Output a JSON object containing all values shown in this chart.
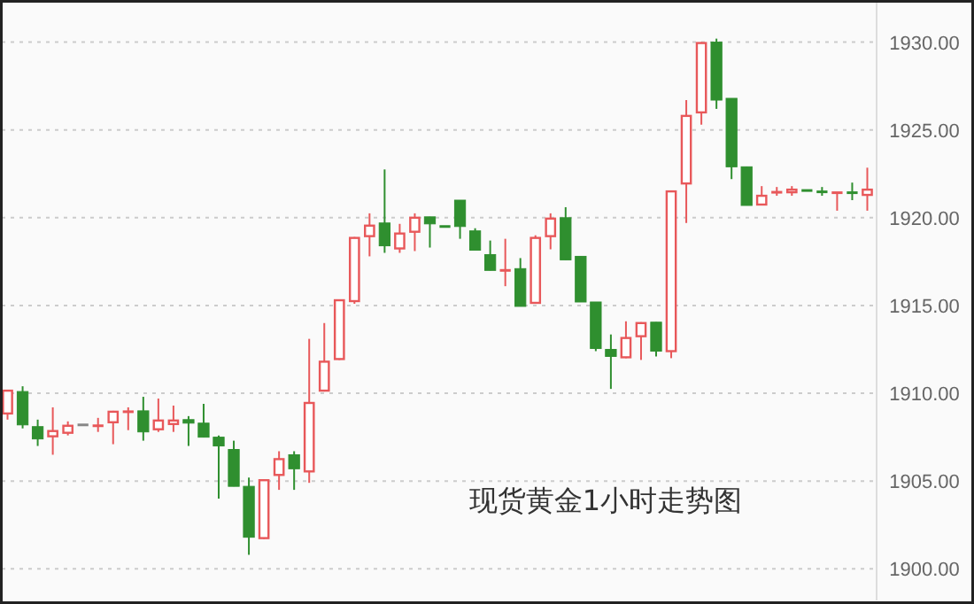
{
  "chart_data": {
    "type": "candlestick",
    "title": "现货黄金1小时走势图",
    "categories": [
      null,
      null,
      null,
      null,
      null,
      null,
      null,
      null,
      null,
      null,
      null,
      null,
      null,
      null,
      null,
      null,
      null,
      null,
      null,
      null,
      null,
      null,
      null,
      null,
      null,
      null,
      null,
      null,
      null,
      null,
      null,
      null,
      null,
      null,
      null,
      null,
      null,
      null,
      null,
      null,
      null,
      null,
      null,
      null,
      null,
      null,
      null,
      null,
      null,
      null,
      null,
      null,
      null,
      null,
      null,
      null,
      null,
      null
    ],
    "ohlc": [
      [
        1908.8,
        1910.2,
        1908.5,
        1910.2
      ],
      [
        1910.1,
        1910.4,
        1908.0,
        1908.2
      ],
      [
        1908.1,
        1908.5,
        1907.0,
        1907.4
      ],
      [
        1907.5,
        1909.2,
        1906.5,
        1907.9
      ],
      [
        1907.7,
        1908.4,
        1907.6,
        1908.2
      ],
      [
        1908.2,
        1908.2,
        1908.2,
        1908.2
      ],
      [
        1908.1,
        1908.6,
        1907.8,
        1908.2
      ],
      [
        1908.3,
        1909.0,
        1907.1,
        1909.0
      ],
      [
        1908.9,
        1909.2,
        1907.9,
        1909.0
      ],
      [
        1909.0,
        1909.8,
        1907.3,
        1907.8
      ],
      [
        1907.9,
        1909.7,
        1907.8,
        1908.5
      ],
      [
        1908.2,
        1909.3,
        1907.8,
        1908.5
      ],
      [
        1908.5,
        1908.7,
        1907.0,
        1908.3
      ],
      [
        1908.3,
        1909.4,
        1907.5,
        1907.5
      ],
      [
        1907.5,
        1907.6,
        1904.0,
        1907.0
      ],
      [
        1906.8,
        1907.3,
        1904.7,
        1904.7
      ],
      [
        1904.7,
        1905.2,
        1900.8,
        1901.8
      ],
      [
        1901.7,
        1905.1,
        1901.7,
        1905.1
      ],
      [
        1905.3,
        1906.7,
        1904.5,
        1906.3
      ],
      [
        1906.5,
        1906.7,
        1904.5,
        1905.7
      ],
      [
        1905.5,
        1913.1,
        1904.9,
        1909.5
      ],
      [
        1910.1,
        1914.0,
        1910.1,
        1911.85
      ],
      [
        1911.9,
        1915.35,
        1911.9,
        1915.35
      ],
      [
        1915.2,
        1918.9,
        1915.1,
        1918.9
      ],
      [
        1918.9,
        1920.25,
        1917.8,
        1919.6
      ],
      [
        1919.7,
        1922.75,
        1918.0,
        1918.4
      ],
      [
        1918.2,
        1919.65,
        1918.0,
        1919.15
      ],
      [
        1919.15,
        1920.25,
        1918.1,
        1920.05
      ],
      [
        1920.05,
        1920.05,
        1918.3,
        1919.65
      ],
      [
        1919.5,
        1919.5,
        1919.5,
        1919.5
      ],
      [
        1921.0,
        1921.0,
        1918.8,
        1919.5
      ],
      [
        1919.25,
        1919.4,
        1918.15,
        1918.15
      ],
      [
        1917.9,
        1918.7,
        1917.0,
        1917.0
      ],
      [
        1916.95,
        1918.8,
        1916.1,
        1917.05
      ],
      [
        1917.1,
        1917.7,
        1914.95,
        1914.95
      ],
      [
        1915.1,
        1919.0,
        1915.1,
        1918.9
      ],
      [
        1918.9,
        1920.25,
        1918.2,
        1920.0
      ],
      [
        1920.0,
        1920.6,
        1917.6,
        1917.6
      ],
      [
        1917.8,
        1917.8,
        1915.2,
        1915.2
      ],
      [
        1915.2,
        1915.2,
        1912.4,
        1912.55
      ],
      [
        1912.5,
        1913.35,
        1910.25,
        1912.1
      ],
      [
        1912.0,
        1914.1,
        1912.0,
        1913.2
      ],
      [
        1913.2,
        1914.05,
        1911.9,
        1914.05
      ],
      [
        1914.05,
        1914.05,
        1912.1,
        1912.4
      ],
      [
        1912.35,
        1921.55,
        1912.0,
        1921.55
      ],
      [
        1921.9,
        1926.7,
        1919.7,
        1925.85
      ],
      [
        1925.95,
        1930.0,
        1925.3,
        1930.0
      ],
      [
        1930.0,
        1930.2,
        1926.2,
        1926.7
      ],
      [
        1926.8,
        1926.8,
        1922.2,
        1922.9
      ],
      [
        1922.9,
        1922.9,
        1920.7,
        1920.7
      ],
      [
        1920.7,
        1921.8,
        1920.7,
        1921.3
      ],
      [
        1921.4,
        1921.75,
        1921.25,
        1921.5
      ],
      [
        1921.4,
        1921.8,
        1921.25,
        1921.65
      ],
      [
        1921.55,
        1921.55,
        1921.55,
        1921.55
      ],
      [
        1921.5,
        1921.75,
        1921.25,
        1921.45
      ],
      [
        1921.4,
        1921.45,
        1920.4,
        1921.45
      ],
      [
        1921.45,
        1922.0,
        1921.0,
        1921.4
      ],
      [
        1921.25,
        1922.85,
        1920.4,
        1921.65
      ]
    ],
    "colors": [
      "#e8585a",
      "#2f8f2f",
      "#2f8f2f",
      "#e8585a",
      "#e8585a",
      "#888888",
      "#e8585a",
      "#e8585a",
      "#e8585a",
      "#2f8f2f",
      "#e8585a",
      "#e8585a",
      "#2f8f2f",
      "#2f8f2f",
      "#2f8f2f",
      "#2f8f2f",
      "#2f8f2f",
      "#e8585a",
      "#e8585a",
      "#2f8f2f",
      "#e8585a",
      "#e8585a",
      "#e8585a",
      "#e8585a",
      "#e8585a",
      "#2f8f2f",
      "#e8585a",
      "#e8585a",
      "#2f8f2f",
      "#2f8f2f",
      "#2f8f2f",
      "#2f8f2f",
      "#2f8f2f",
      "#e8585a",
      "#2f8f2f",
      "#e8585a",
      "#e8585a",
      "#2f8f2f",
      "#2f8f2f",
      "#2f8f2f",
      "#2f8f2f",
      "#e8585a",
      "#e8585a",
      "#2f8f2f",
      "#e8585a",
      "#e8585a",
      "#e8585a",
      "#2f8f2f",
      "#2f8f2f",
      "#2f8f2f",
      "#e8585a",
      "#e8585a",
      "#e8585a",
      "#2f8f2f",
      "#2f8f2f",
      "#e8585a",
      "#2f8f2f",
      "#e8585a"
    ],
    "ylim": [
      1898.2,
      1932.3
    ],
    "yticks": [
      {
        "value": 1900,
        "label": "1900.00"
      },
      {
        "value": 1905,
        "label": "1905.00"
      },
      {
        "value": 1910,
        "label": "1910.00"
      },
      {
        "value": 1915,
        "label": "1915.00"
      },
      {
        "value": 1920,
        "label": "1920.00"
      },
      {
        "value": 1925,
        "label": "1925.00"
      },
      {
        "value": 1930,
        "label": "1930.00"
      }
    ],
    "grid": "y"
  }
}
